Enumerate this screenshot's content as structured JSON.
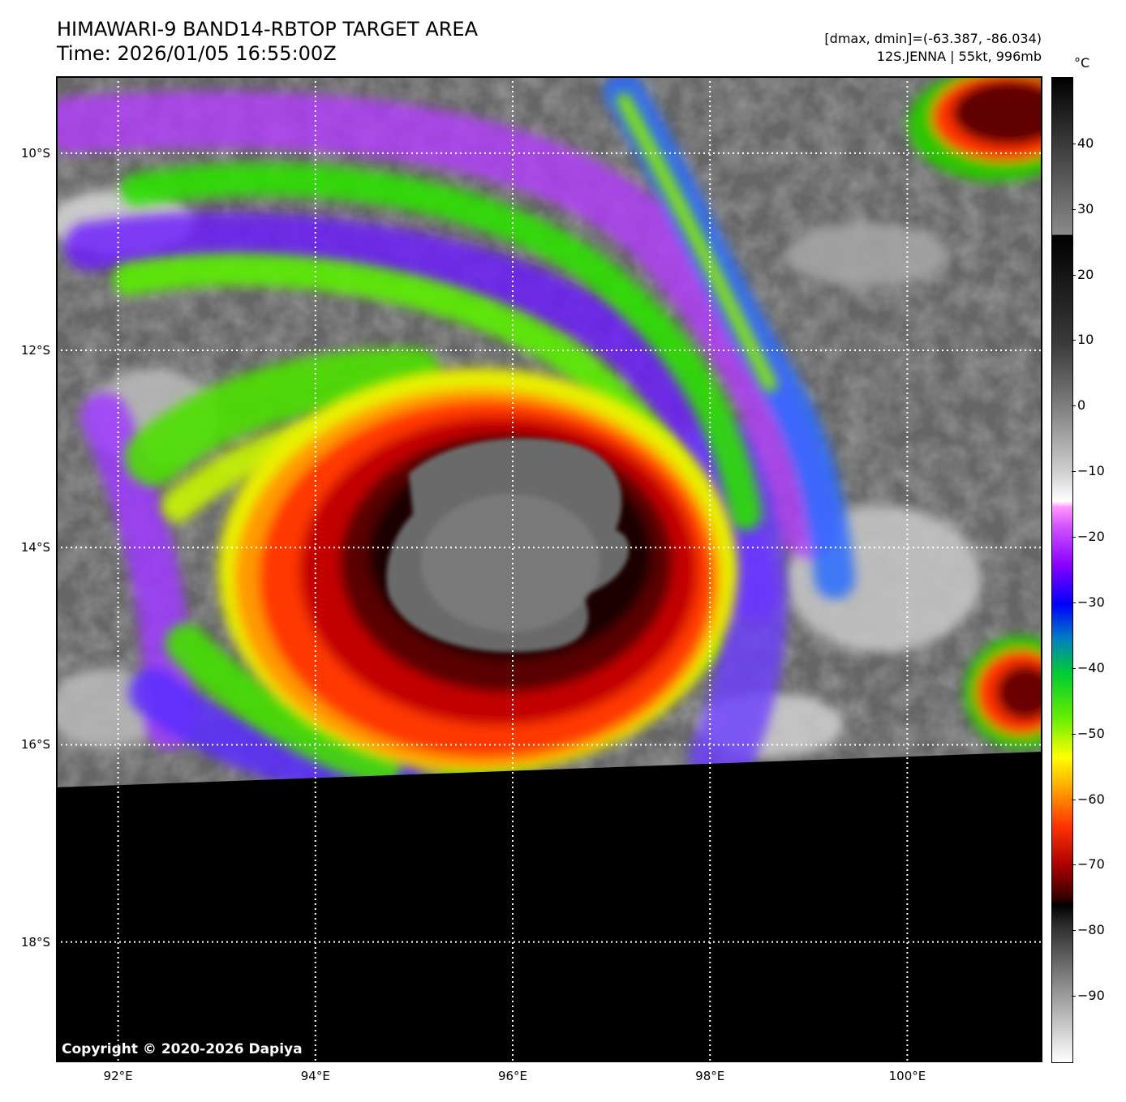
{
  "title": {
    "line1": "HIMAWARI-9 BAND14-RBTOP TARGET AREA",
    "line2": "Time: 2026/01/05 16:55:00Z"
  },
  "info": {
    "range": "[dmax, dmin]=(-63.387, -86.034)",
    "storm": "12S.JENNA | 55kt, 996mb"
  },
  "copyright": "Copyright © 2020-2026 Dapiya",
  "map": {
    "lon_range": [
      91.37,
      101.37
    ],
    "lat_range": [
      -9.22,
      -19.22
    ],
    "storm_center": {
      "lon": 95.55,
      "lat": -13.9
    },
    "lat_ticks": [
      {
        "value": -10,
        "label": "10°S"
      },
      {
        "value": -12,
        "label": "12°S"
      },
      {
        "value": -14,
        "label": "14°S"
      },
      {
        "value": -16,
        "label": "16°S"
      },
      {
        "value": -18,
        "label": "18°S"
      }
    ],
    "lon_ticks": [
      {
        "value": 92,
        "label": "92°E"
      },
      {
        "value": 94,
        "label": "94°E"
      },
      {
        "value": 96,
        "label": "96°E"
      },
      {
        "value": 98,
        "label": "98°E"
      },
      {
        "value": 100,
        "label": "100°E"
      }
    ],
    "no_data_boundary": {
      "west_lat": -16.44,
      "east_lat": -16.1
    },
    "grid": true
  },
  "colorbar": {
    "unit": "°C",
    "range": [
      -100,
      50
    ],
    "ticks": [
      {
        "value": 40,
        "label": "40"
      },
      {
        "value": 30,
        "label": "30"
      },
      {
        "value": 20,
        "label": "20"
      },
      {
        "value": 10,
        "label": "10"
      },
      {
        "value": 0,
        "label": "0"
      },
      {
        "value": -10,
        "label": "−10"
      },
      {
        "value": -20,
        "label": "−20"
      },
      {
        "value": -30,
        "label": "−30"
      },
      {
        "value": -40,
        "label": "−40"
      },
      {
        "value": -50,
        "label": "−50"
      },
      {
        "value": -60,
        "label": "−60"
      },
      {
        "value": -70,
        "label": "−70"
      },
      {
        "value": -80,
        "label": "−80"
      },
      {
        "value": -90,
        "label": "−90"
      }
    ]
  }
}
